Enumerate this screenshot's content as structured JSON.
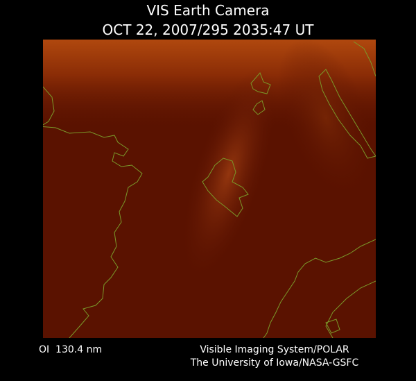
{
  "header": {
    "title": "VIS Earth Camera",
    "timestamp": "OCT 22, 2007/295 2035:47 UT"
  },
  "footer": {
    "filter": "OI  130.4 nm",
    "instrument": "Visible Imaging System/POLAR",
    "credit": "The University of Iowa/NASA-GSFC"
  }
}
